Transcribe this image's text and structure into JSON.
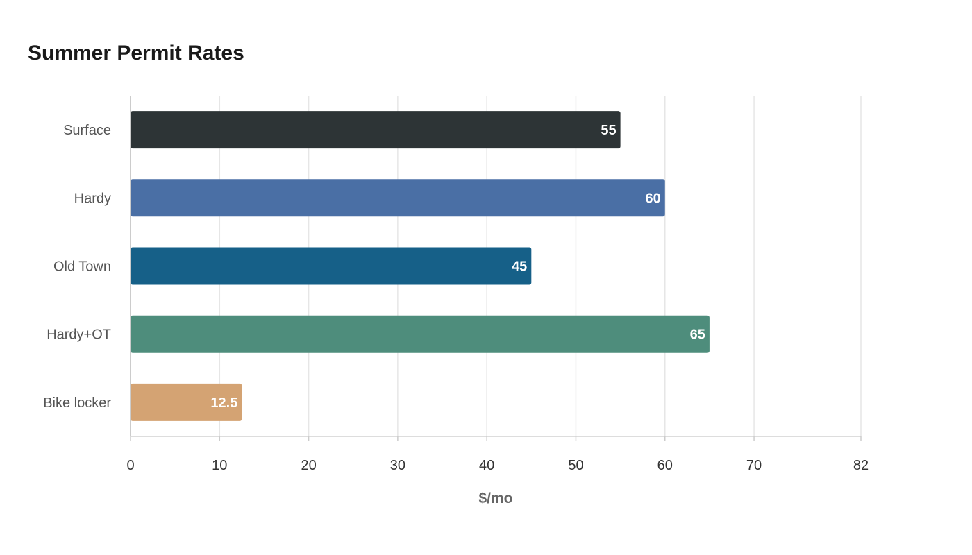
{
  "chart_data": {
    "type": "bar",
    "orientation": "horizontal",
    "title": "Summer Permit Rates",
    "xlabel": "$/mo",
    "ylabel": "",
    "categories": [
      "Surface",
      "Hardy",
      "Old Town",
      "Hardy+OT",
      "Bike locker"
    ],
    "values": [
      55,
      60,
      45,
      65,
      12.5
    ],
    "colors": [
      "#2d3436",
      "#4a6fa5",
      "#166088",
      "#4e8d7c",
      "#d4a373"
    ],
    "xlim": [
      0,
      82
    ],
    "xticks": [
      0,
      10,
      20,
      30,
      40,
      50,
      60,
      70,
      82
    ],
    "grid": true,
    "legend": "none"
  }
}
